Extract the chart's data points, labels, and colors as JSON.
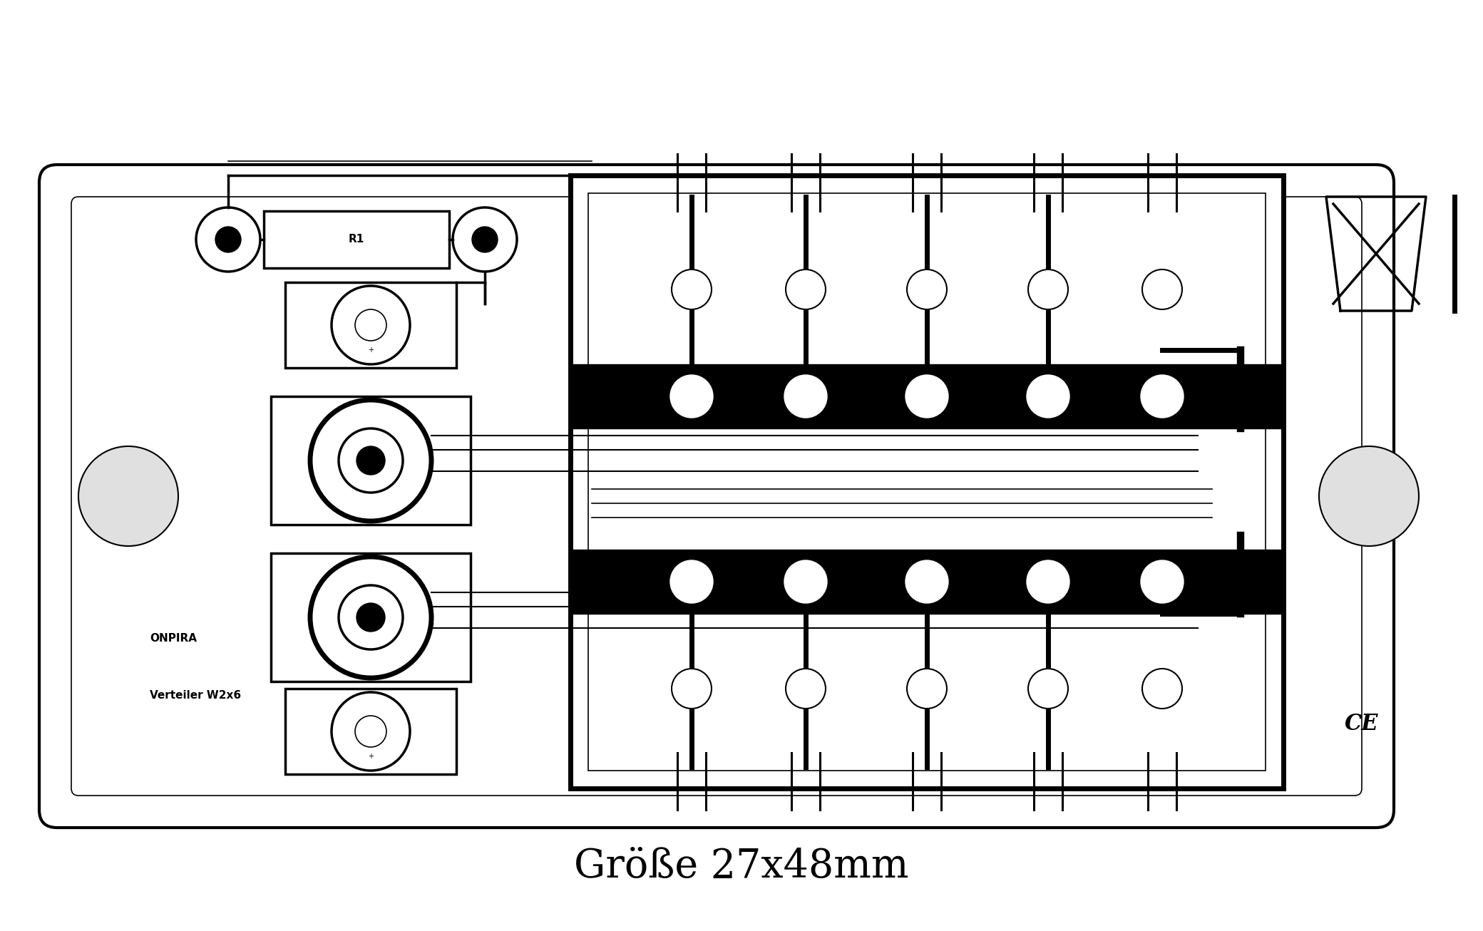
{
  "bg_color": "#ffffff",
  "board_bg": "#ffffff",
  "line_color": "#000000",
  "title_text": "Größe 27x48mm",
  "brand_text": "ONPIRA",
  "reg_mark": "®",
  "model_text": "Verteiler W2x6",
  "resistor_label": "R1",
  "fig_width": 20.8,
  "fig_height": 13.06,
  "dpi": 100
}
